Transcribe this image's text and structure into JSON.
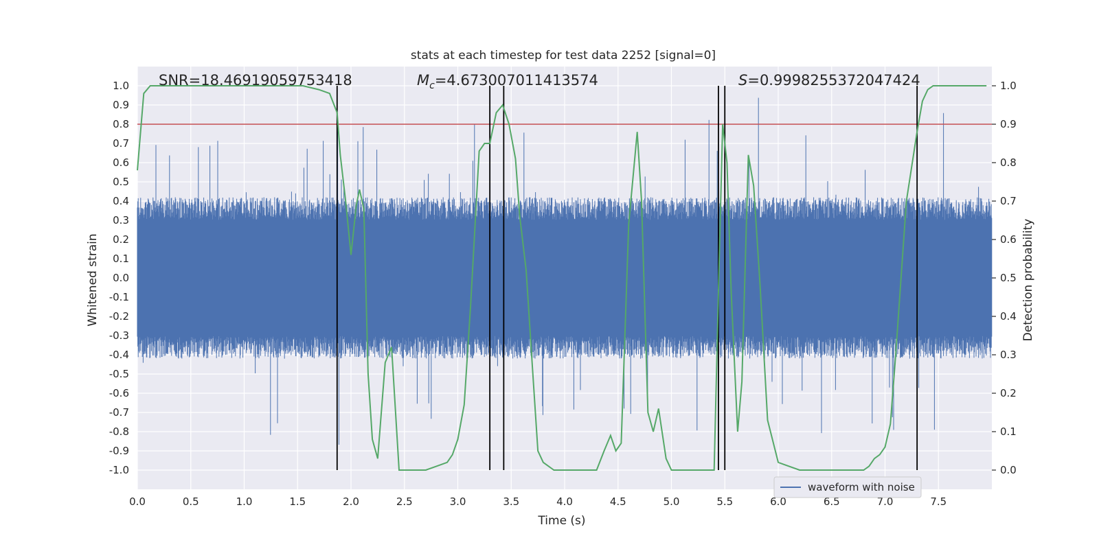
{
  "chart_data": {
    "type": "line",
    "title": "stats at each timestep for test data 2252 [signal=0]",
    "xlabel": "Time (s)",
    "ylabel": "Whitened strain",
    "ylabel_right": "Detection probability",
    "xlim": [
      0,
      8
    ],
    "ylim": [
      -1.1,
      1.1
    ],
    "ylim_right": [
      -0.05,
      1.05
    ],
    "x_ticks": [
      "0.0",
      "0.5",
      "1.0",
      "1.5",
      "2.0",
      "2.5",
      "3.0",
      "3.5",
      "4.0",
      "4.5",
      "5.0",
      "5.5",
      "6.0",
      "6.5",
      "7.0",
      "7.5"
    ],
    "x_tick_values": [
      0,
      0.5,
      1,
      1.5,
      2,
      2.5,
      3,
      3.5,
      4,
      4.5,
      5,
      5.5,
      6,
      6.5,
      7,
      7.5
    ],
    "y_ticks": [
      "1.0",
      "0.9",
      "0.8",
      "0.7",
      "0.6",
      "0.5",
      "0.4",
      "0.3",
      "0.2",
      "0.1",
      "0.0",
      "-0.1",
      "-0.2",
      "-0.3",
      "-0.4",
      "-0.5",
      "-0.6",
      "-0.7",
      "-0.8",
      "-0.9",
      "-1.0"
    ],
    "y_tick_values": [
      1.0,
      0.9,
      0.8,
      0.7,
      0.6,
      0.5,
      0.4,
      0.3,
      0.2,
      0.1,
      0.0,
      -0.1,
      -0.2,
      -0.3,
      -0.4,
      -0.5,
      -0.6,
      -0.7,
      -0.8,
      -0.9,
      -1.0
    ],
    "y_right_ticks": [
      "1.0",
      "0.9",
      "0.8",
      "0.7",
      "0.6",
      "0.5",
      "0.4",
      "0.3",
      "0.2",
      "0.1",
      "0.0"
    ],
    "y_right_tick_values": [
      1.0,
      0.9,
      0.8,
      0.7,
      0.6,
      0.5,
      0.4,
      0.3,
      0.2,
      0.1,
      0.0
    ],
    "annotations": {
      "snr": "SNR=18.46919059753418",
      "mc": "Mᴄ=4.673007011413574",
      "mc_symbol": "M",
      "mc_sub": "c",
      "mc_value": "=4.673007011413574",
      "s_symbol": "S",
      "s_value": "=0.9998255372047424"
    },
    "threshold": {
      "value": 0.9,
      "axis": "right",
      "color": "#c44e52"
    },
    "event_markers": [
      1.87,
      3.3,
      3.43,
      5.44,
      5.5,
      7.3
    ],
    "series": [
      {
        "name": "waveform with noise",
        "axis": "left",
        "color": "#4c72b0",
        "kind": "noise",
        "band": 0.42
      },
      {
        "name": "detection probability",
        "axis": "right",
        "color": "#55a868",
        "x": [
          0.0,
          0.06,
          0.12,
          0.2,
          0.4,
          0.6,
          0.8,
          1.0,
          1.2,
          1.4,
          1.55,
          1.7,
          1.8,
          1.87,
          1.9,
          1.95,
          2.0,
          2.05,
          2.08,
          2.12,
          2.16,
          2.2,
          2.25,
          2.32,
          2.38,
          2.45,
          2.5,
          2.6,
          2.7,
          2.8,
          2.9,
          2.95,
          3.0,
          3.06,
          3.12,
          3.2,
          3.25,
          3.3,
          3.36,
          3.42,
          3.48,
          3.54,
          3.58,
          3.64,
          3.7,
          3.75,
          3.8,
          3.9,
          4.0,
          4.1,
          4.2,
          4.3,
          4.37,
          4.43,
          4.48,
          4.53,
          4.6,
          4.68,
          4.72,
          4.78,
          4.83,
          4.88,
          4.95,
          5.0,
          5.2,
          5.3,
          5.4,
          5.44,
          5.48,
          5.52,
          5.56,
          5.62,
          5.66,
          5.72,
          5.77,
          5.83,
          5.9,
          6.0,
          6.2,
          6.4,
          6.5,
          6.6,
          6.7,
          6.8,
          6.85,
          6.9,
          6.95,
          7.0,
          7.05,
          7.1,
          7.2,
          7.3,
          7.35,
          7.4,
          7.45,
          7.5,
          7.6,
          7.8,
          7.95
        ],
        "y": [
          0.78,
          0.98,
          1.0,
          1.0,
          1.0,
          1.0,
          1.0,
          1.0,
          1.0,
          1.0,
          1.0,
          0.99,
          0.98,
          0.93,
          0.82,
          0.7,
          0.56,
          0.69,
          0.73,
          0.68,
          0.25,
          0.08,
          0.03,
          0.28,
          0.32,
          0.0,
          0.0,
          0.0,
          0.0,
          0.01,
          0.02,
          0.04,
          0.08,
          0.17,
          0.43,
          0.83,
          0.85,
          0.85,
          0.93,
          0.95,
          0.9,
          0.81,
          0.66,
          0.52,
          0.26,
          0.05,
          0.02,
          0.0,
          0.0,
          0.0,
          0.0,
          0.0,
          0.05,
          0.09,
          0.05,
          0.07,
          0.64,
          0.88,
          0.7,
          0.15,
          0.1,
          0.16,
          0.03,
          0.0,
          0.0,
          0.0,
          0.0,
          0.46,
          0.9,
          0.8,
          0.46,
          0.1,
          0.23,
          0.82,
          0.74,
          0.48,
          0.13,
          0.02,
          0.0,
          0.0,
          0.0,
          0.0,
          0.0,
          0.0,
          0.01,
          0.03,
          0.04,
          0.06,
          0.12,
          0.3,
          0.7,
          0.88,
          0.96,
          0.99,
          1.0,
          1.0,
          1.0,
          1.0,
          1.0
        ]
      }
    ],
    "legend": {
      "label": "waveform with noise",
      "position": "lower-right"
    },
    "grid": true
  },
  "colors": {
    "background": "#eaeaf2",
    "grid": "#ffffff",
    "marker": "#000000"
  }
}
